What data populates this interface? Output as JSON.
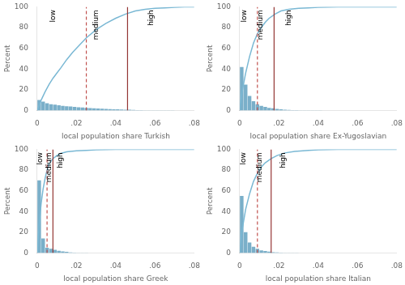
{
  "chart_data": [
    {
      "type": "histogram",
      "xlabel": "local population share Turkish",
      "ylabel": "Percent",
      "bins": [
        0.0,
        0.002,
        0.004,
        0.006,
        0.008,
        0.01,
        0.012,
        0.014,
        0.016,
        0.018,
        0.02,
        0.022,
        0.024,
        0.026,
        0.028,
        0.03,
        0.032,
        0.034,
        0.036,
        0.038,
        0.04,
        0.042,
        0.044,
        0.046,
        0.048,
        0.05,
        0.052,
        0.054,
        0.056,
        0.058,
        0.06,
        0.062,
        0.064,
        0.066,
        0.068,
        0.07,
        0.072,
        0.074,
        0.076,
        0.078,
        0.08
      ],
      "values": [
        10.0,
        8.5,
        7.0,
        6.0,
        5.5,
        5.0,
        4.5,
        4.0,
        3.8,
        3.5,
        3.0,
        2.8,
        2.5,
        2.2,
        2.0,
        1.8,
        1.6,
        1.4,
        1.2,
        1.1,
        1.0,
        0.9,
        0.8,
        0.7,
        0.5,
        0.35,
        0.25,
        0.15,
        0.1,
        0.08,
        0.05,
        0.04,
        0.03,
        0.02,
        0.02,
        0.01,
        0.01,
        0.0,
        0.0,
        0.0
      ],
      "color": "#7aafc9",
      "series": [
        {
          "type": "line",
          "color": "#7ab8d4",
          "x": [
            0.0,
            0.002,
            0.004,
            0.006,
            0.008,
            0.01,
            0.012,
            0.015,
            0.018,
            0.021,
            0.025,
            0.03,
            0.035,
            0.04,
            0.045,
            0.05,
            0.055,
            0.06,
            0.065,
            0.07,
            0.075,
            0.08
          ],
          "values": [
            0,
            10,
            18,
            25,
            31,
            36,
            41,
            49,
            56,
            62,
            70,
            78,
            84,
            89,
            93,
            96,
            97.5,
            98.5,
            99,
            99.5,
            100,
            100
          ]
        }
      ],
      "annotations": [
        {
          "type": "vline",
          "x": 0.025,
          "color": "#c0504d",
          "line_style": "dashed"
        },
        {
          "type": "vline",
          "x": 0.046,
          "color": "#943634",
          "line_style": "solid"
        },
        {
          "type": "text",
          "text": "low",
          "x": 0.008,
          "y": 97
        },
        {
          "type": "text",
          "text": "medium",
          "x": 0.03,
          "y": 97
        },
        {
          "type": "text",
          "text": "high",
          "x": 0.058,
          "y": 97
        }
      ],
      "xlim": [
        0,
        0.08
      ],
      "xticks": [
        0,
        {
          "value": 0.02,
          "label": ".02"
        },
        {
          "value": 0.04,
          "label": ".04"
        },
        {
          "value": 0.06,
          "label": ".06"
        },
        {
          "value": 0.08,
          "label": ".08"
        }
      ],
      "ylim": [
        0,
        100
      ],
      "yticks": [
        0,
        20,
        40,
        60,
        80,
        100
      ],
      "grid": false
    },
    {
      "type": "histogram",
      "xlabel": "local population share Ex-Yugoslavian",
      "ylabel": "Percent",
      "bins": [
        0.0,
        0.002,
        0.004,
        0.006,
        0.008,
        0.01,
        0.012,
        0.014,
        0.016,
        0.018,
        0.02,
        0.022,
        0.024,
        0.026,
        0.028,
        0.03,
        0.032,
        0.034,
        0.036,
        0.038,
        0.04,
        0.042,
        0.044,
        0.046,
        0.048,
        0.05
      ],
      "values": [
        42,
        25,
        14,
        9,
        6,
        4.5,
        3.5,
        2.5,
        2.0,
        1.5,
        1.0,
        0.8,
        0.6,
        0.4,
        0.3,
        0.2,
        0.15,
        0.1,
        0.05,
        0.03,
        0.02,
        0.01,
        0.005,
        0.0,
        0.0
      ],
      "color": "#7aafc9",
      "series": [
        {
          "type": "line",
          "color": "#7ab8d4",
          "x": [
            0.0,
            0.001,
            0.003,
            0.005,
            0.007,
            0.009,
            0.011,
            0.013,
            0.015,
            0.018,
            0.021,
            0.025,
            0.03,
            0.035,
            0.04,
            0.045,
            0.05,
            0.06,
            0.07,
            0.08
          ],
          "values": [
            0,
            16,
            36,
            52,
            65,
            74,
            80,
            85,
            89,
            93,
            96,
            97.5,
            98.5,
            99,
            99.5,
            99.8,
            100,
            100,
            100,
            100
          ]
        }
      ],
      "annotations": [
        {
          "type": "vline",
          "x": 0.009,
          "color": "#c0504d",
          "line_style": "dashed"
        },
        {
          "type": "vline",
          "x": 0.0175,
          "color": "#943634",
          "line_style": "solid"
        },
        {
          "type": "text",
          "text": "low",
          "x": 0.0025,
          "y": 97
        },
        {
          "type": "text",
          "text": "medium",
          "x": 0.0105,
          "y": 97
        },
        {
          "type": "text",
          "text": "high",
          "x": 0.025,
          "y": 97
        }
      ],
      "xlim": [
        0,
        0.08
      ],
      "xticks": [
        0,
        {
          "value": 0.02,
          "label": ".02"
        },
        {
          "value": 0.04,
          "label": ".04"
        },
        {
          "value": 0.06,
          "label": ".06"
        },
        {
          "value": 0.08,
          "label": ".08"
        }
      ],
      "ylim": [
        0,
        100
      ],
      "yticks": [
        0,
        20,
        40,
        60,
        80,
        100
      ],
      "grid": false
    },
    {
      "type": "histogram",
      "xlabel": "local population share Greek",
      "ylabel": "Percent",
      "bins": [
        0.0,
        0.002,
        0.004,
        0.006,
        0.008,
        0.01,
        0.012,
        0.014,
        0.016,
        0.018,
        0.02,
        0.022,
        0.024,
        0.026
      ],
      "values": [
        70,
        14,
        5,
        4,
        3,
        2,
        1.5,
        1.0,
        0.5,
        0.3,
        0.15,
        0.05,
        0.02
      ],
      "color": "#7aafc9",
      "series": [
        {
          "type": "line",
          "color": "#7ab8d4",
          "x": [
            0.0,
            0.001,
            0.002,
            0.003,
            0.004,
            0.005,
            0.006,
            0.008,
            0.01,
            0.012,
            0.015,
            0.02,
            0.025,
            0.03,
            0.04,
            0.06,
            0.08
          ],
          "values": [
            0,
            28,
            48,
            62,
            72,
            80,
            86,
            91,
            94,
            96,
            97.5,
            98.5,
            99,
            99.5,
            100,
            100,
            100
          ]
        }
      ],
      "annotations": [
        {
          "type": "vline",
          "x": 0.005,
          "color": "#c0504d",
          "line_style": "dashed"
        },
        {
          "type": "vline",
          "x": 0.008,
          "color": "#943634",
          "line_style": "solid"
        },
        {
          "type": "text",
          "text": "low",
          "x": 0.0015,
          "y": 97
        },
        {
          "type": "text",
          "text": "medium",
          "x": 0.006,
          "y": 97
        },
        {
          "type": "text",
          "text": "high",
          "x": 0.012,
          "y": 97
        }
      ],
      "xlim": [
        0,
        0.08
      ],
      "xticks": [
        0,
        {
          "value": 0.02,
          "label": ".02"
        },
        {
          "value": 0.04,
          "label": ".04"
        },
        {
          "value": 0.06,
          "label": ".06"
        },
        {
          "value": 0.08,
          "label": ".08"
        }
      ],
      "ylim": [
        0,
        100
      ],
      "yticks": [
        0,
        20,
        40,
        60,
        80,
        100
      ],
      "grid": false
    },
    {
      "type": "histogram",
      "xlabel": "local population share Italian",
      "ylabel": "Percent",
      "bins": [
        0.0,
        0.002,
        0.004,
        0.006,
        0.008,
        0.01,
        0.012,
        0.014,
        0.016,
        0.018,
        0.02,
        0.022,
        0.024,
        0.026,
        0.028,
        0.03
      ],
      "values": [
        55,
        20,
        10,
        6,
        4,
        2.5,
        1.8,
        1.2,
        0.8,
        0.5,
        0.3,
        0.15,
        0.08,
        0.04,
        0.02
      ],
      "color": "#7aafc9",
      "series": [
        {
          "type": "line",
          "color": "#7ab8d4",
          "x": [
            0.0,
            0.001,
            0.003,
            0.005,
            0.007,
            0.009,
            0.011,
            0.013,
            0.016,
            0.019,
            0.023,
            0.028,
            0.035,
            0.04,
            0.05,
            0.06,
            0.07,
            0.08
          ],
          "values": [
            0,
            20,
            42,
            57,
            69,
            77,
            83,
            87,
            91,
            94,
            96.5,
            98,
            99,
            99.5,
            100,
            100,
            100,
            100
          ]
        }
      ],
      "annotations": [
        {
          "type": "vline",
          "x": 0.009,
          "color": "#c0504d",
          "line_style": "dashed"
        },
        {
          "type": "vline",
          "x": 0.016,
          "color": "#943634",
          "line_style": "solid"
        },
        {
          "type": "text",
          "text": "low",
          "x": 0.002,
          "y": 97
        },
        {
          "type": "text",
          "text": "medium",
          "x": 0.01,
          "y": 97
        },
        {
          "type": "text",
          "text": "high",
          "x": 0.022,
          "y": 97
        }
      ],
      "xlim": [
        0,
        0.08
      ],
      "xticks": [
        0,
        {
          "value": 0.02,
          "label": ".02"
        },
        {
          "value": 0.04,
          "label": ".04"
        },
        {
          "value": 0.06,
          "label": ".06"
        },
        {
          "value": 0.08,
          "label": ".08"
        }
      ],
      "ylim": [
        0,
        100
      ],
      "yticks": [
        0,
        20,
        40,
        60,
        80,
        100
      ],
      "grid": false
    }
  ]
}
